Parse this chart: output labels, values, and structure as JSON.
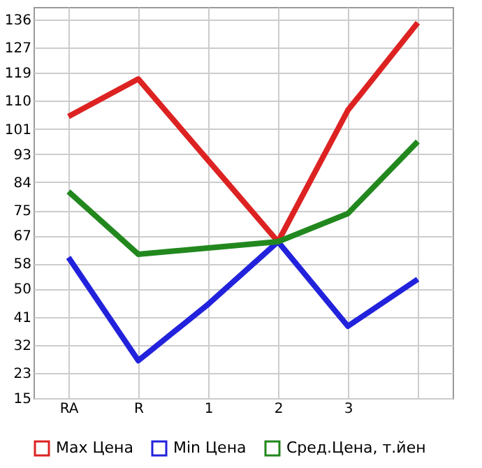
{
  "chart_data": {
    "type": "line",
    "categories": [
      "RA",
      "R",
      "1",
      "2",
      "3",
      null
    ],
    "series": [
      {
        "name": "Max Цена",
        "color": "#dd2222",
        "values": [
          105,
          117,
          91,
          65,
          107,
          135
        ]
      },
      {
        "name": "Min Цена",
        "color": "#2222dd",
        "values": [
          60,
          27,
          45,
          65,
          38,
          53
        ]
      },
      {
        "name": "Сред.Цена, т.йен",
        "color": "#22881e",
        "values": [
          81,
          61,
          63,
          65,
          74,
          97
        ]
      }
    ],
    "ylim": [
      15,
      140
    ],
    "yticks": [
      15,
      23,
      32,
      41,
      50,
      58,
      67,
      75,
      84,
      93,
      101,
      110,
      119,
      127,
      136
    ],
    "grid": true,
    "legend": "bottom",
    "marker": "none",
    "line_style": "solid"
  }
}
